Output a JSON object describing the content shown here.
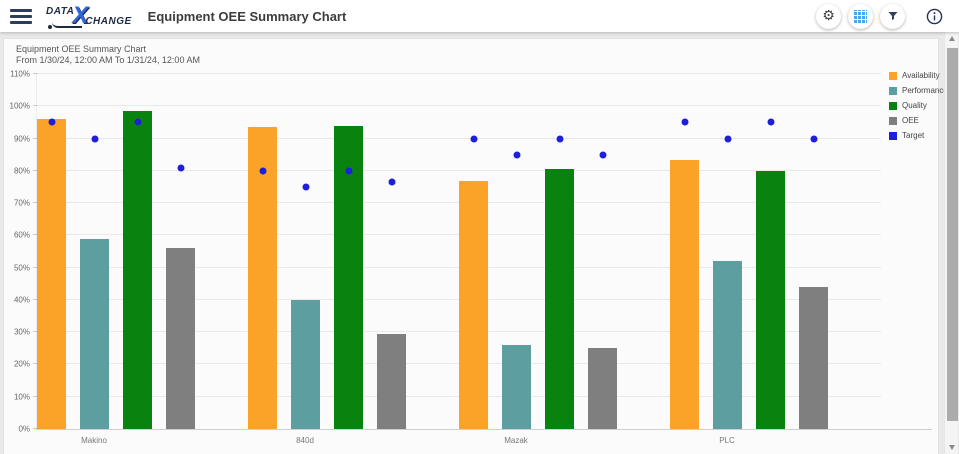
{
  "header": {
    "title": "Equipment OEE Summary Chart",
    "logo": {
      "data": "DATA",
      "x": "X",
      "change": "CHANGE"
    },
    "icons": {
      "menu": "hamburger",
      "settings": "gear",
      "grid_view": "grid-table",
      "filter": "funnel",
      "info": "info-circle",
      "gear_glyph": "⚙"
    },
    "accent_blue": "#4EA5E6",
    "navy": "#2E3D5C",
    "brand_blue": "#2E68D8"
  },
  "chart_data": {
    "type": "bar",
    "title": "Equipment OEE Summary Chart",
    "subtitle": "From 1/30/24, 12:00 AM To 1/31/24, 12:00 AM",
    "categories": [
      "Makino",
      "840d",
      "Mazak",
      "PLC"
    ],
    "series": [
      {
        "name": "Availability",
        "color": "#FBA228",
        "values": [
          96,
          93.5,
          77,
          83.5
        ]
      },
      {
        "name": "Performance",
        "color": "#5D9EA1",
        "values": [
          59,
          40,
          26,
          52
        ]
      },
      {
        "name": "Quality",
        "color": "#0A820F",
        "values": [
          98.5,
          94,
          80.5,
          80
        ]
      },
      {
        "name": "OEE",
        "color": "#7F7F7F",
        "values": [
          56,
          29.5,
          25,
          44
        ]
      }
    ],
    "target": {
      "name": "Target",
      "color": "#1F1FD9",
      "values": [
        [
          95,
          90,
          95,
          81
        ],
        [
          80,
          75,
          80,
          76.5
        ],
        [
          90,
          85,
          90,
          85
        ],
        [
          95,
          90,
          95,
          90
        ]
      ]
    },
    "ylim": [
      0,
      110
    ],
    "ytick_step": 10,
    "yticks": [
      "0%",
      "10%",
      "20%",
      "30%",
      "40%",
      "50%",
      "60%",
      "70%",
      "80%",
      "90%",
      "100%",
      "110%"
    ],
    "legend_position": "right",
    "grid": "horizontal"
  }
}
